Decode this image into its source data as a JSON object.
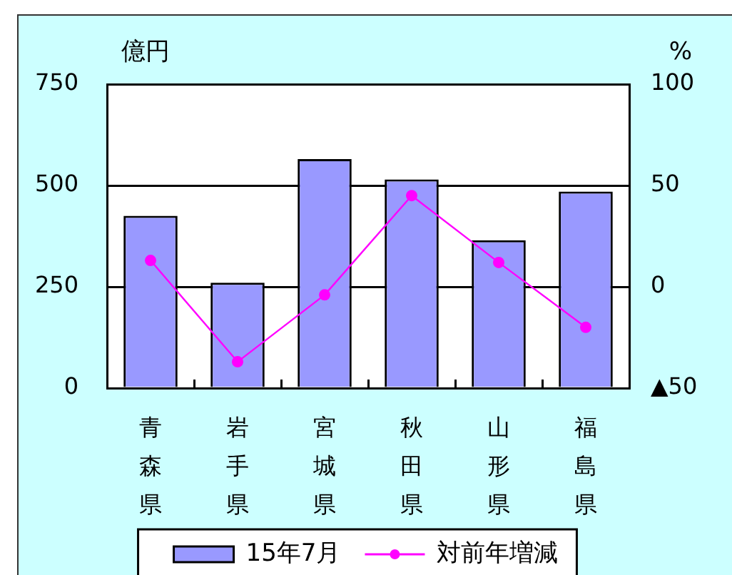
{
  "chart_data": {
    "type": "bar",
    "categories": [
      "青森県",
      "岩手県",
      "宮城県",
      "秋田県",
      "山形県",
      "福島県"
    ],
    "ylabel": "億円",
    "y2label": "%",
    "series": [
      {
        "name": "15年7月",
        "color": "#9999ff",
        "values": [
          425,
          260,
          565,
          515,
          365,
          485
        ]
      },
      {
        "name": "対前年増減",
        "type": "line",
        "axis": "y2",
        "color": "#ff00ff",
        "values": [
          13,
          -37,
          -4,
          45,
          12,
          -20
        ]
      }
    ],
    "ylim": [
      0,
      750
    ],
    "yticks": [
      0,
      250,
      500,
      750
    ],
    "y2lim": [
      -50,
      100
    ],
    "y2ticks": [
      {
        "value": -50,
        "label": "▲50"
      },
      0,
      50,
      100
    ],
    "grid": "y",
    "legend": "bottom",
    "marker": "circle"
  }
}
